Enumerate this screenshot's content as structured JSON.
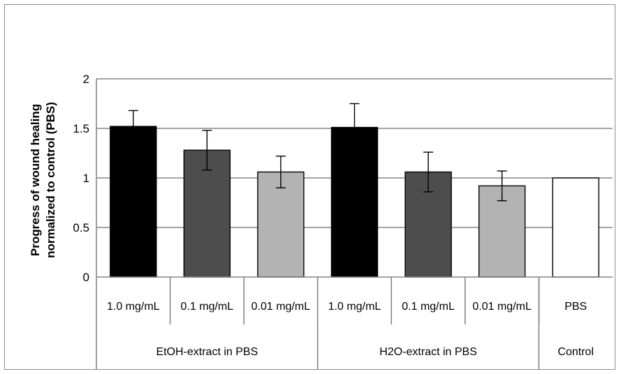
{
  "chart_data": {
    "type": "bar",
    "title": "",
    "ylabel_lines": [
      "Progress of wound healing",
      "normalized to control (PBS)"
    ],
    "ylim": [
      0,
      2
    ],
    "yticks": [
      0,
      0.5,
      1,
      1.5,
      2
    ],
    "ytick_labels": [
      "0",
      "0.5",
      "1",
      "1.5",
      "2"
    ],
    "grid": true,
    "categories": [
      "1.0 mg/mL",
      "0.1 mg/mL",
      "0.01 mg/mL",
      "1.0 mg/mL",
      "0.1 mg/mL",
      "0.01 mg/mL",
      "PBS"
    ],
    "groups": [
      {
        "label": "EtOH-extract in PBS",
        "span": 3
      },
      {
        "label": "H2O-extract in PBS",
        "span": 3
      },
      {
        "label": "Control",
        "span": 1
      }
    ],
    "values": [
      1.52,
      1.28,
      1.06,
      1.51,
      1.06,
      0.92,
      1.0
    ],
    "errors": [
      0.16,
      0.2,
      0.16,
      0.24,
      0.2,
      0.15,
      0.0
    ],
    "bar_colors": [
      "#000000",
      "#4d4d4d",
      "#b3b3b3",
      "#000000",
      "#4d4d4d",
      "#b3b3b3",
      "#ffffff"
    ]
  }
}
